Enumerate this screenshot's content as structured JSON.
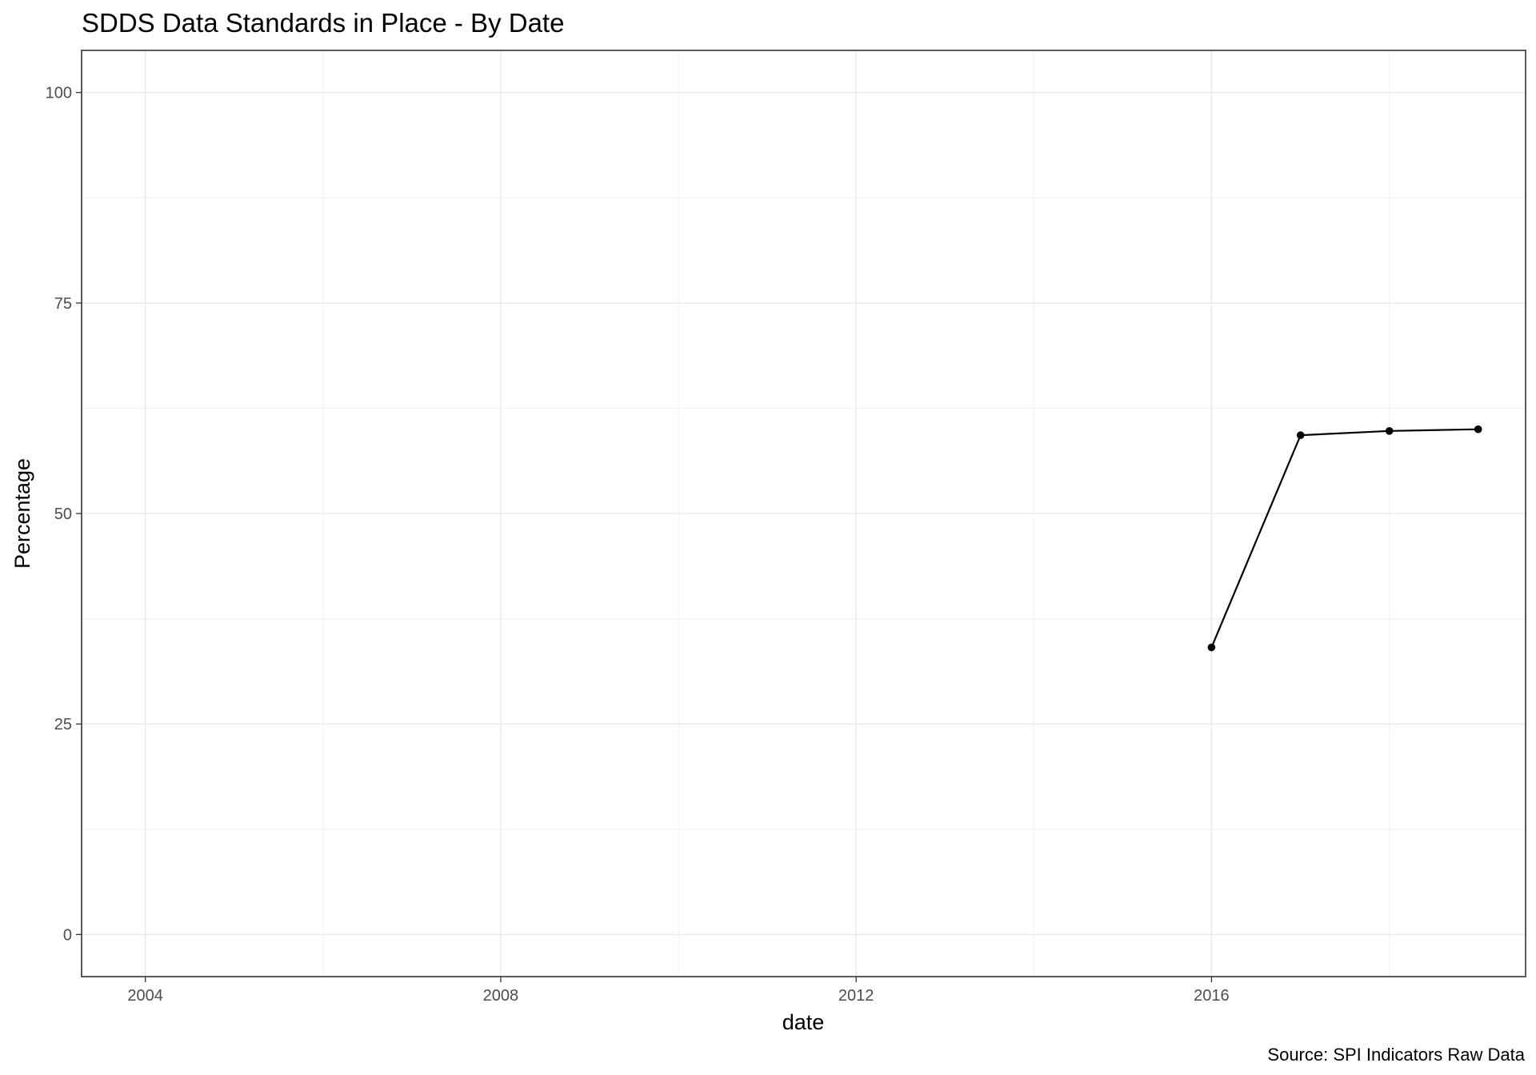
{
  "chart_data": {
    "type": "line",
    "title": "SDDS Data Standards in Place - By Date",
    "xlabel": "date",
    "ylabel": "Percentage",
    "caption": "Source: SPI Indicators Raw Data",
    "xlim": [
      "2003-04-14",
      "2019-07-15"
    ],
    "ylim": [
      -5,
      105
    ],
    "x_ticks": [
      "2004-01-01",
      "2008-01-01",
      "2012-01-01",
      "2016-01-01"
    ],
    "x_tick_labels": [
      "2004",
      "2008",
      "2012",
      "2016"
    ],
    "x_minor_ticks": [
      "2006-01-01",
      "2010-01-01",
      "2014-01-01",
      "2018-01-01"
    ],
    "y_ticks": [
      0,
      25,
      50,
      75,
      100
    ],
    "y_tick_labels": [
      "0",
      "25",
      "50",
      "75",
      "100"
    ],
    "y_minor_ticks": [
      12.5,
      37.5,
      62.5,
      87.5
    ],
    "grid": true,
    "series": [
      {
        "x": [
          "2016-01-01",
          "2017-01-01",
          "2018-01-01",
          "2019-01-01"
        ],
        "y": [
          34.1,
          59.3,
          59.8,
          60.0
        ],
        "color": "#000000"
      }
    ]
  }
}
